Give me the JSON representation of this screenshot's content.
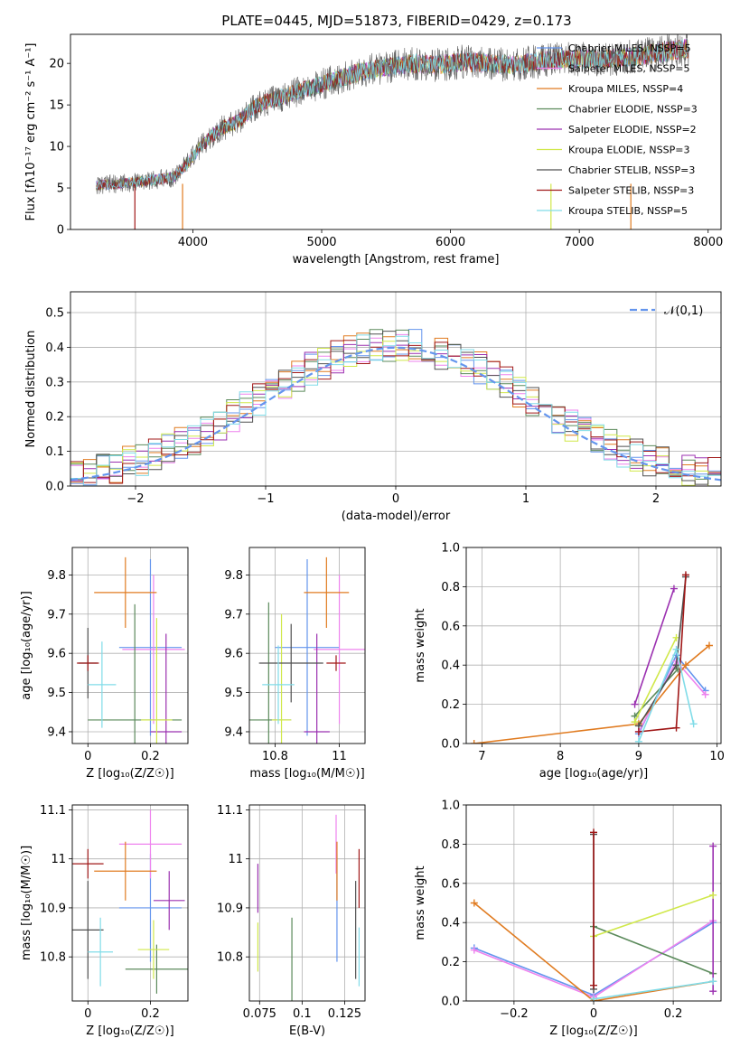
{
  "figure_title": "PLATE=0445, MJD=51873, FIBERID=0429, z=0.173",
  "colors": {
    "Chabrier MILES": "#6495ed",
    "Salpeter MILES": "#ee82ee",
    "Kroupa MILES": "#e07b20",
    "Chabrier ELODIE": "#5b8a5b",
    "Salpeter ELODIE": "#9b30b0",
    "Kroupa ELODIE": "#d0e84a",
    "Chabrier STELIB": "#505050",
    "Salpeter STELIB": "#a01818",
    "Kroupa STELIB": "#80dce8",
    "normal_curve": "#6495ed"
  },
  "chart_data": [
    {
      "id": "spectrum",
      "type": "line",
      "title": "PLATE=0445, MJD=51873, FIBERID=0429, z=0.173",
      "xlabel": "wavelength [Angstrom, rest frame]",
      "ylabel": "Flux [fλ10⁻¹⁷ erg cm⁻² s⁻¹ A⁻¹]",
      "xlim": [
        3050,
        8100
      ],
      "ylim": [
        0,
        23.5
      ],
      "xticks": [
        4000,
        5000,
        6000,
        7000,
        8000
      ],
      "yticks": [
        0,
        5,
        10,
        15,
        20
      ],
      "grid": false,
      "legend_position": "top-right",
      "legend": [
        "Chabrier MILES, NSSP=5",
        "Salpeter MILES, NSSP=5",
        "Kroupa MILES, NSSP=4",
        "Chabrier ELODIE, NSSP=3",
        "Salpeter ELODIE, NSSP=2",
        "Kroupa ELODIE, NSSP=3",
        "Chabrier STELIB, NSSP=3",
        "Salpeter STELIB, NSSP=3",
        "Kroupa STELIB, NSSP=5"
      ],
      "data_trend": {
        "x": [
          3250,
          3400,
          3550,
          3700,
          3850,
          3950,
          4050,
          4200,
          4350,
          4500,
          4700,
          4900,
          5100,
          5300,
          5500,
          5700,
          5900,
          6100,
          6300,
          6500,
          6700,
          6900,
          7100,
          7300,
          7500,
          7700,
          7850
        ],
        "y": [
          5.3,
          5.5,
          5.7,
          6.0,
          6.3,
          7.8,
          9.8,
          12.0,
          13.0,
          15.0,
          16.0,
          17.0,
          18.0,
          19.0,
          19.5,
          20.0,
          19.8,
          20.2,
          20.0,
          19.8,
          20.3,
          20.5,
          20.5,
          20.6,
          21.0,
          21.5,
          21.8
        ]
      }
    },
    {
      "id": "residuals",
      "type": "line",
      "xlabel": "(data-model)/error",
      "ylabel": "Normed distribution",
      "xlim": [
        -2.5,
        2.5
      ],
      "ylim": [
        0,
        0.56
      ],
      "xticks": [
        -2,
        -1,
        0,
        1,
        2
      ],
      "yticks": [
        0.0,
        0.1,
        0.2,
        0.3,
        0.4,
        0.5
      ],
      "grid": true,
      "legend_position": "top-right",
      "legend": [
        "𝒩(0,1)"
      ],
      "bin_edges": [
        -2.5,
        -2.4,
        -2.3,
        -2.2,
        -2.1,
        -2.0,
        -1.9,
        -1.8,
        -1.7,
        -1.6,
        -1.5,
        -1.4,
        -1.3,
        -1.2,
        -1.1,
        -1.0,
        -0.9,
        -0.8,
        -0.7,
        -0.6,
        -0.5,
        -0.4,
        -0.3,
        -0.2,
        -0.1,
        0.0,
        0.1,
        0.2,
        0.3,
        0.4,
        0.5,
        0.6,
        0.7,
        0.8,
        0.9,
        1.0,
        1.1,
        1.2,
        1.3,
        1.4,
        1.5,
        1.6,
        1.7,
        1.8,
        1.9,
        2.0,
        2.1,
        2.2,
        2.3,
        2.4,
        2.5
      ],
      "normal_curve": "N(0,1)"
    },
    {
      "id": "z-age",
      "type": "scatter",
      "xlabel": "Z [log₁₀(Z/Z☉)]",
      "ylabel": "age  [log₁₀(age/yr)]",
      "xlim": [
        -0.05,
        0.32
      ],
      "ylim": [
        9.37,
        9.87
      ],
      "xticks": [
        0.0,
        0.2
      ],
      "yticks": [
        9.4,
        9.5,
        9.6,
        9.7,
        9.8
      ],
      "grid": true,
      "points": [
        {
          "series": "Chabrier MILES",
          "x": 0.2,
          "y": 9.615,
          "xerr": 0.1,
          "yerr": 0.225
        },
        {
          "series": "Salpeter MILES",
          "x": 0.21,
          "y": 9.61,
          "xerr": 0.1,
          "yerr": 0.19
        },
        {
          "series": "Kroupa MILES",
          "x": 0.12,
          "y": 9.755,
          "xerr": 0.1,
          "yerr": 0.09
        },
        {
          "series": "Chabrier ELODIE",
          "x": 0.15,
          "y": 9.43,
          "xerr": 0.15,
          "yerr": 0.295
        },
        {
          "series": "Salpeter ELODIE",
          "x": 0.25,
          "y": 9.4,
          "xerr": 0.05,
          "yerr": 0.25
        },
        {
          "series": "Kroupa ELODIE",
          "x": 0.22,
          "y": 9.43,
          "xerr": 0.05,
          "yerr": 0.26
        },
        {
          "series": "Chabrier STELIB",
          "x": 0.0,
          "y": 9.575,
          "xerr": 0.03,
          "yerr": 0.09
        },
        {
          "series": "Salpeter STELIB",
          "x": 0.0,
          "y": 9.575,
          "xerr": 0.035,
          "yerr": 0.02
        },
        {
          "series": "Kroupa STELIB",
          "x": 0.045,
          "y": 9.52,
          "xerr": 0.045,
          "yerr": 0.11
        }
      ]
    },
    {
      "id": "mass-age",
      "type": "scatter",
      "xlabel": "mass [log₁₀(M/M☉)]",
      "ylabel": "",
      "xlim": [
        10.72,
        11.08
      ],
      "ylim": [
        9.37,
        9.87
      ],
      "xticks": [
        10.8,
        11.0
      ],
      "yticks": [
        9.4,
        9.5,
        9.6,
        9.7,
        9.8
      ],
      "grid": true,
      "points": [
        {
          "series": "Chabrier MILES",
          "x": 10.9,
          "y": 9.615,
          "xerr": 0.1,
          "yerr": 0.225
        },
        {
          "series": "Salpeter MILES",
          "x": 11.0,
          "y": 9.61,
          "xerr": 0.08,
          "yerr": 0.19
        },
        {
          "series": "Kroupa MILES",
          "x": 10.96,
          "y": 9.755,
          "xerr": 0.07,
          "yerr": 0.09
        },
        {
          "series": "Chabrier ELODIE",
          "x": 10.78,
          "y": 9.43,
          "xerr": 0.07,
          "yerr": 0.3
        },
        {
          "series": "Salpeter ELODIE",
          "x": 10.93,
          "y": 9.4,
          "xerr": 0.04,
          "yerr": 0.25
        },
        {
          "series": "Kroupa ELODIE",
          "x": 10.82,
          "y": 9.43,
          "xerr": 0.03,
          "yerr": 0.27
        },
        {
          "series": "Chabrier STELIB",
          "x": 10.85,
          "y": 9.575,
          "xerr": 0.1,
          "yerr": 0.1
        },
        {
          "series": "Salpeter STELIB",
          "x": 10.99,
          "y": 9.575,
          "xerr": 0.03,
          "yerr": 0.02
        },
        {
          "series": "Kroupa STELIB",
          "x": 10.81,
          "y": 9.52,
          "xerr": 0.05,
          "yerr": 0.1
        }
      ]
    },
    {
      "id": "age-weight",
      "type": "line",
      "xlabel": "age  [log₁₀(age/yr)]",
      "ylabel": "mass weight",
      "xlim": [
        6.8,
        10.05
      ],
      "ylim": [
        0,
        1.0
      ],
      "xticks": [
        7,
        8,
        9,
        10
      ],
      "yticks": [
        0.0,
        0.2,
        0.4,
        0.6,
        0.8,
        1.0
      ],
      "grid": true,
      "series": [
        {
          "name": "Chabrier MILES",
          "x": [
            9.0,
            9.48,
            9.85
          ],
          "y": [
            0.05,
            0.45,
            0.27
          ]
        },
        {
          "name": "Salpeter MILES",
          "x": [
            9.0,
            9.48,
            9.85
          ],
          "y": [
            0.06,
            0.42,
            0.25
          ]
        },
        {
          "name": "Kroupa MILES",
          "x": [
            6.9,
            9.0,
            9.6,
            9.9
          ],
          "y": [
            0.0,
            0.1,
            0.4,
            0.5
          ]
        },
        {
          "name": "Chabrier ELODIE",
          "x": [
            8.95,
            9.5
          ],
          "y": [
            0.14,
            0.38
          ]
        },
        {
          "name": "Salpeter ELODIE",
          "x": [
            8.95,
            9.45
          ],
          "y": [
            0.2,
            0.79
          ]
        },
        {
          "name": "Kroupa ELODIE",
          "x": [
            8.95,
            9.48
          ],
          "y": [
            0.11,
            0.54
          ]
        },
        {
          "name": "Chabrier STELIB",
          "x": [
            9.0,
            9.48,
            9.6
          ],
          "y": [
            0.09,
            0.4,
            0.85
          ]
        },
        {
          "name": "Salpeter STELIB",
          "x": [
            9.0,
            9.48,
            9.6
          ],
          "y": [
            0.06,
            0.08,
            0.86
          ]
        },
        {
          "name": "Kroupa STELIB",
          "x": [
            9.0,
            9.48,
            9.7
          ],
          "y": [
            0.01,
            0.48,
            0.1
          ]
        }
      ]
    },
    {
      "id": "z-mass",
      "type": "scatter",
      "xlabel": "Z [log₁₀(Z/Z☉)]",
      "ylabel": "mass [log₁₀(M/M☉)]",
      "xlim": [
        -0.05,
        0.32
      ],
      "ylim": [
        10.71,
        11.11
      ],
      "xticks": [
        0.0,
        0.2
      ],
      "yticks": [
        10.8,
        10.9,
        11.0,
        11.1
      ],
      "grid": true,
      "points": [
        {
          "series": "Chabrier MILES",
          "x": 0.2,
          "y": 10.9,
          "xerr": 0.1,
          "yerr": 0.11
        },
        {
          "series": "Salpeter MILES",
          "x": 0.2,
          "y": 11.03,
          "xerr": 0.1,
          "yerr": 0.07
        },
        {
          "series": "Kroupa MILES",
          "x": 0.12,
          "y": 10.975,
          "xerr": 0.1,
          "yerr": 0.06
        },
        {
          "series": "Chabrier ELODIE",
          "x": 0.22,
          "y": 10.775,
          "xerr": 0.1,
          "yerr": 0.05
        },
        {
          "series": "Salpeter ELODIE",
          "x": 0.26,
          "y": 10.915,
          "xerr": 0.05,
          "yerr": 0.06
        },
        {
          "series": "Kroupa ELODIE",
          "x": 0.21,
          "y": 10.815,
          "xerr": 0.05,
          "yerr": 0.06
        },
        {
          "series": "Chabrier STELIB",
          "x": 0.0,
          "y": 10.855,
          "xerr": 0.05,
          "yerr": 0.1
        },
        {
          "series": "Salpeter STELIB",
          "x": 0.0,
          "y": 10.99,
          "xerr": 0.05,
          "yerr": 0.03
        },
        {
          "series": "Kroupa STELIB",
          "x": 0.04,
          "y": 10.81,
          "xerr": 0.04,
          "yerr": 0.07
        }
      ]
    },
    {
      "id": "ebv-mass",
      "type": "scatter",
      "xlabel": "E(B-V)",
      "ylabel": "",
      "xlim": [
        0.069,
        0.137
      ],
      "ylim": [
        10.71,
        11.11
      ],
      "xticks": [
        0.075,
        0.1,
        0.125
      ],
      "yticks": [
        10.8,
        10.9,
        11.0,
        11.1
      ],
      "grid": true,
      "points": [
        {
          "series": "Chabrier MILES",
          "x": 0.1205,
          "y": 10.9,
          "yerr": 0.11
        },
        {
          "series": "Salpeter MILES",
          "x": 0.12,
          "y": 11.03,
          "yerr": 0.06
        },
        {
          "series": "Kroupa MILES",
          "x": 0.1205,
          "y": 10.975,
          "yerr": 0.06
        },
        {
          "series": "Chabrier ELODIE",
          "x": 0.094,
          "y": 10.775,
          "yerr": 0.105
        },
        {
          "series": "Salpeter ELODIE",
          "x": 0.074,
          "y": 10.94,
          "yerr": 0.05
        },
        {
          "series": "Kroupa ELODIE",
          "x": 0.074,
          "y": 10.82,
          "yerr": 0.05
        },
        {
          "series": "Chabrier STELIB",
          "x": 0.1315,
          "y": 10.855,
          "yerr": 0.1
        },
        {
          "series": "Salpeter STELIB",
          "x": 0.1335,
          "y": 10.96,
          "yerr": 0.06
        },
        {
          "series": "Kroupa STELIB",
          "x": 0.1335,
          "y": 10.8,
          "yerr": 0.06
        }
      ]
    },
    {
      "id": "z-weight",
      "type": "line",
      "xlabel": "Z [log₁₀(Z/Z☉)]",
      "ylabel": "mass weight",
      "xlim": [
        -0.32,
        0.32
      ],
      "ylim": [
        0,
        1.0
      ],
      "xticks": [
        -0.2,
        0.0,
        0.2
      ],
      "yticks": [
        0.0,
        0.2,
        0.4,
        0.6,
        0.8,
        1.0
      ],
      "grid": true,
      "series": [
        {
          "name": "Chabrier MILES",
          "x": [
            -0.3,
            0.0,
            0.3
          ],
          "y": [
            0.27,
            0.03,
            0.4
          ]
        },
        {
          "name": "Salpeter MILES",
          "x": [
            -0.3,
            0.0,
            0.3
          ],
          "y": [
            0.26,
            0.02,
            0.41
          ]
        },
        {
          "name": "Kroupa MILES",
          "x": [
            -0.3,
            0.0,
            0.3
          ],
          "y": [
            0.5,
            0.0,
            0.1
          ]
        },
        {
          "name": "Chabrier ELODIE",
          "x": [
            0.0,
            0.3
          ],
          "y": [
            0.38,
            0.14
          ]
        },
        {
          "name": "Salpeter ELODIE",
          "x": [
            0.3,
            0.3
          ],
          "y": [
            0.05,
            0.79
          ]
        },
        {
          "name": "Kroupa ELODIE",
          "x": [
            0.0,
            0.3
          ],
          "y": [
            0.33,
            0.54
          ]
        },
        {
          "name": "Chabrier STELIB",
          "x": [
            0.0,
            0.0
          ],
          "y": [
            0.06,
            0.85
          ]
        },
        {
          "name": "Salpeter STELIB",
          "x": [
            0.0,
            0.0
          ],
          "y": [
            0.08,
            0.86
          ]
        },
        {
          "name": "Kroupa STELIB",
          "x": [
            0.0,
            0.3
          ],
          "y": [
            0.01,
            0.1
          ]
        }
      ]
    }
  ]
}
